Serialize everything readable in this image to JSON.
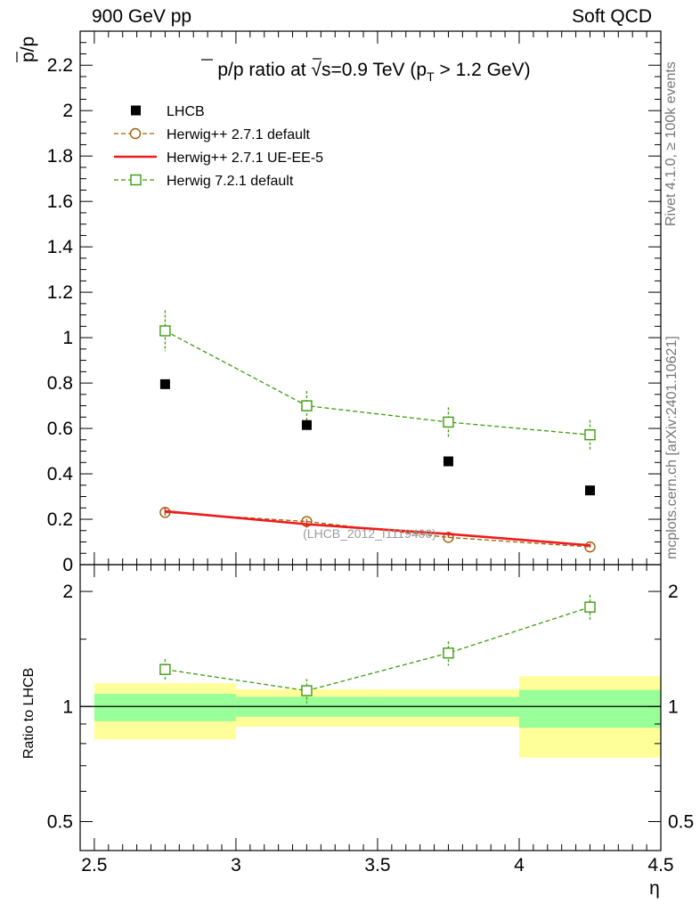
{
  "header": {
    "left": "900 GeV pp",
    "right": "Soft QCD"
  },
  "side_labels": {
    "rivet": "Rivet 4.1.0, ≥ 100k events",
    "mcplots": "mcplots.cern.ch [arXiv:2401.10621]"
  },
  "colors": {
    "data": "#000000",
    "herwigpp_default": "#a15d08",
    "herwigpp_ueee5": "#ee1b1b",
    "herwig7_default": "#3d9b0e",
    "band_inner": "#99ff99",
    "band_outer": "#ffff99"
  },
  "chart_data": [
    {
      "type": "scatter",
      "title": "p̅/p ratio at √s=0.9 TeV (p_T > 1.2 GeV)",
      "title_parts": [
        "p",
        "/p ratio at √",
        "s",
        "=0.9 TeV (p",
        "T",
        " > 1.2 GeV)"
      ],
      "xlabel": "η",
      "ylabel": "p̅/p",
      "ylabel_parts": [
        "p",
        "/p"
      ],
      "xlim": [
        2.45,
        4.5
      ],
      "ylim": [
        0,
        2.35
      ],
      "x_ticks": [
        2.5,
        3,
        3.5,
        4,
        4.5
      ],
      "x_tick_labels": [
        "2.5",
        "3",
        "3.5",
        "4",
        "4.5"
      ],
      "y_ticks": [
        0,
        0.2,
        0.4,
        0.6,
        0.8,
        1,
        1.2,
        1.4,
        1.6,
        1.8,
        2,
        2.2
      ],
      "y_tick_labels": [
        "0",
        "0.2",
        "0.4",
        "0.6",
        "0.8",
        "1",
        "1.2",
        "1.4",
        "1.6",
        "1.8",
        "2",
        "2.2"
      ],
      "watermark": "(LHCB_2012_I1119400)",
      "x": [
        2.75,
        3.25,
        3.75,
        4.25
      ],
      "bin_edges": [
        2.5,
        3.0,
        3.5,
        4.0,
        4.5
      ],
      "series": [
        {
          "name": "LHCB",
          "marker": "square-filled",
          "line": "none",
          "values": [
            0.795,
            0.615,
            0.455,
            0.327
          ],
          "errors": [
            0.003,
            0.003,
            0.003,
            0.004
          ]
        },
        {
          "name": "Herwig++ 2.7.1 default",
          "marker": "circle-open",
          "line": "dashed",
          "values": [
            0.23,
            0.19,
            0.12,
            0.078
          ],
          "errors": [
            0.012,
            0.012,
            0.01,
            0.008
          ]
        },
        {
          "name": "Herwig++ 2.7.1 UE-EE-5",
          "marker": "none",
          "line": "solid",
          "values": [
            0.235,
            0.178,
            0.135,
            0.085
          ],
          "errors": [
            0.018,
            0.015,
            0.01,
            0.008
          ]
        },
        {
          "name": "Herwig 7.2.1 default",
          "marker": "square-open",
          "line": "dashed",
          "values": [
            1.03,
            0.7,
            0.628,
            0.572
          ],
          "errors": [
            0.09,
            0.065,
            0.065,
            0.065
          ]
        }
      ],
      "legend_placement": "top-left"
    },
    {
      "type": "scatter",
      "title": "",
      "xlabel": "η",
      "ylabel": "Ratio to LHCB",
      "xlim": [
        2.45,
        4.5
      ],
      "ylim": [
        0.42,
        2.35
      ],
      "y_scale": "log",
      "y_labeled_ticks": [
        0.5,
        1,
        2
      ],
      "y_tick_labels": [
        "0.5",
        "1",
        "2"
      ],
      "x": [
        2.75,
        3.25,
        3.75,
        4.25
      ],
      "bin_edges": [
        2.5,
        3.0,
        3.5,
        4.0,
        4.5
      ],
      "reference_line": 1,
      "bands": {
        "inner_low": [
          0.915,
          0.94,
          0.94,
          0.88
        ],
        "inner_high": [
          1.08,
          1.06,
          1.06,
          1.105
        ],
        "outer_low": [
          0.82,
          0.885,
          0.885,
          0.735
        ],
        "outer_high": [
          1.15,
          1.11,
          1.11,
          1.2
        ]
      },
      "series": [
        {
          "name": "Herwig 7.2.1 default",
          "marker": "square-open",
          "line": "dashed",
          "values": [
            1.25,
            1.1,
            1.38,
            1.82
          ],
          "errors": [
            0.08,
            0.08,
            0.1,
            0.14
          ]
        }
      ]
    }
  ]
}
